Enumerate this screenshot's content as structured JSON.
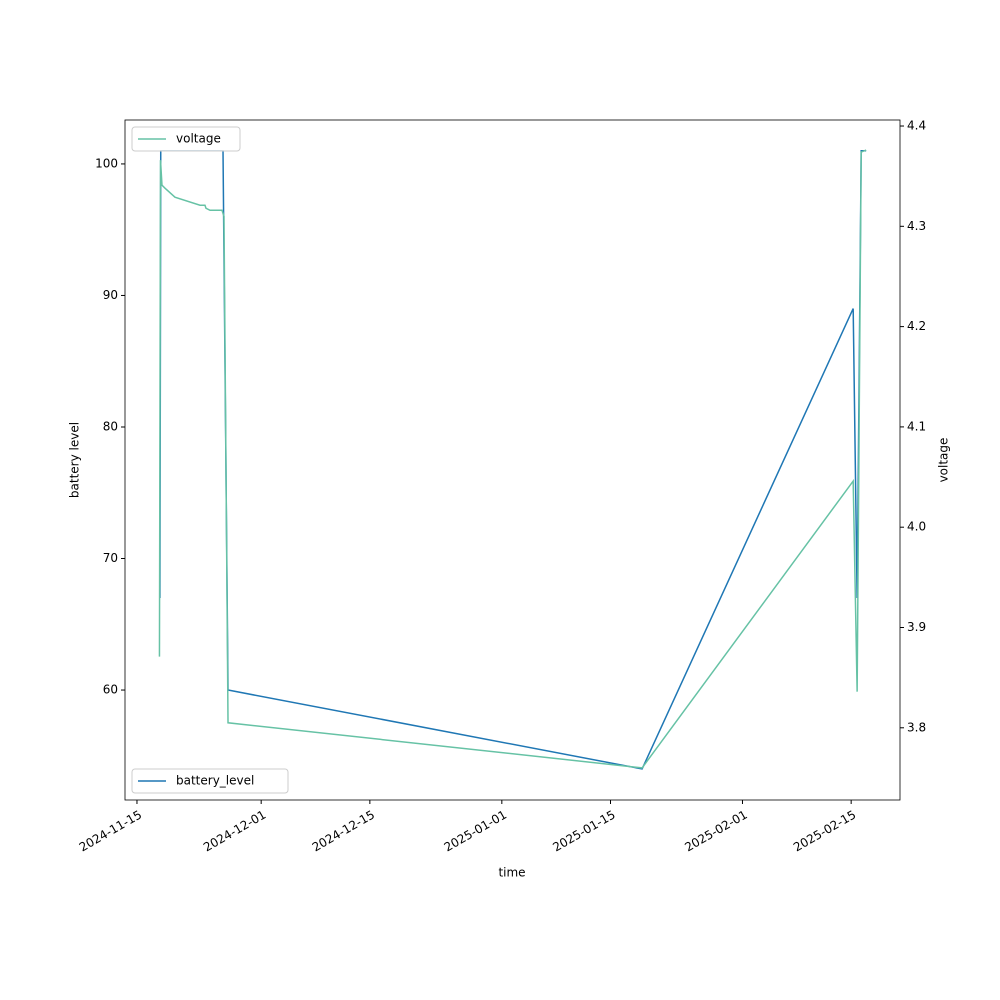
{
  "chart_data": {
    "type": "line",
    "xlabel": "time",
    "ylabel": "battery level",
    "y2label": "voltage",
    "xlim": [
      "2024-11-13T11:00",
      "2025-02-21T07:00"
    ],
    "xticks": [
      "2024-11-15",
      "2024-12-01",
      "2024-12-15",
      "2025-01-01",
      "2025-01-15",
      "2025-02-01",
      "2025-02-15"
    ],
    "ylim": [
      51.64,
      103.34
    ],
    "yticks": [
      60,
      70,
      80,
      90,
      100
    ],
    "y2lim": [
      3.728,
      4.406
    ],
    "y2ticks": [
      3.8,
      3.9,
      {
        "value": 4,
        "label": "4.0"
      },
      4.1,
      4.2,
      4.3,
      4.4
    ],
    "series": [
      {
        "name": "battery_level",
        "color": "#1f77b4",
        "legend": "lower left",
        "x": [
          "2024-11-17T23:00",
          "2024-11-18T01:30",
          "2024-11-26T02:00",
          "2024-11-26T17:30",
          "2025-01-19T01:40",
          "2025-02-15T06:15",
          "2025-02-15T18:30",
          "2025-02-16T07:00",
          "2025-02-16T22:20"
        ],
        "values": [
          67,
          101,
          101,
          60,
          54,
          89,
          67,
          101,
          101
        ]
      },
      {
        "name": "voltage",
        "color": "#66c2a5",
        "axis": "y2",
        "legend": "upper left",
        "x": [
          "2024-11-17T21:30",
          "2024-11-18T00:45",
          "2024-11-18T05:20",
          "2024-11-18T14:40",
          "2024-11-19T21:30",
          "2024-11-23T03:00",
          "2024-11-23T18:15",
          "2024-11-23T21:20",
          "2024-11-24T09:50",
          "2024-11-25T22:50",
          "2024-11-26T05:00",
          "2024-11-26T17:30",
          "2025-01-19T01:40",
          "2025-02-15T06:15",
          "2025-02-15T18:30",
          "2025-02-16T07:00",
          "2025-02-16T22:20"
        ],
        "values": [
          3.871,
          4.366,
          4.341,
          4.338,
          4.329,
          4.321,
          4.321,
          4.318,
          4.316,
          4.316,
          4.31,
          3.805,
          3.76,
          4.046,
          3.836,
          4.374,
          4.376
        ]
      }
    ]
  }
}
